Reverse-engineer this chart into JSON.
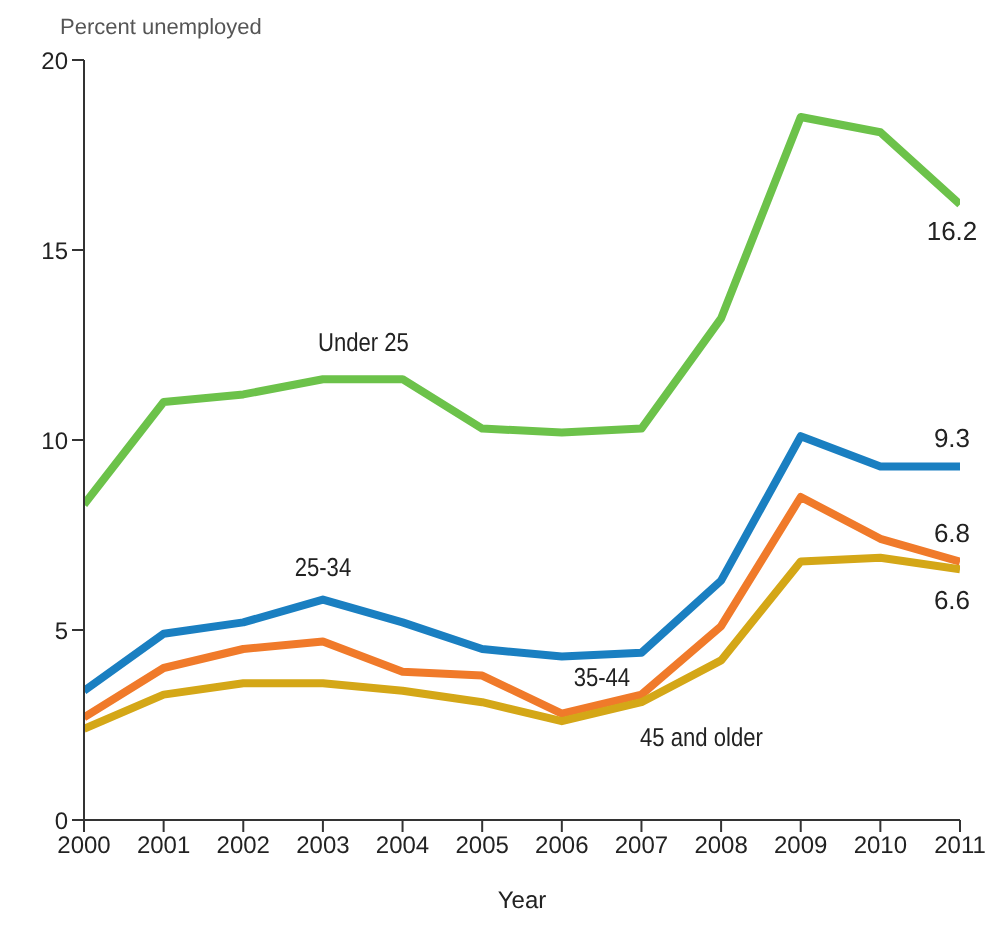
{
  "chart_data": {
    "type": "line",
    "ylabel": "Percent unemployed",
    "xlabel": "Year",
    "x": [
      2000,
      2001,
      2002,
      2003,
      2004,
      2005,
      2006,
      2007,
      2008,
      2009,
      2010,
      2011
    ],
    "xlim": [
      2000,
      2011
    ],
    "xticks": [
      2000,
      2001,
      2002,
      2003,
      2004,
      2005,
      2006,
      2007,
      2008,
      2009,
      2010,
      2011
    ],
    "ylim": [
      0,
      20
    ],
    "yticks": [
      0,
      5,
      10,
      15,
      20
    ],
    "grid": false,
    "legend": false,
    "marker": "none",
    "line_style": "solid",
    "series": [
      {
        "name": "Under 25",
        "color": "#6cc24a",
        "values": [
          8.3,
          11.0,
          11.2,
          11.6,
          11.6,
          10.3,
          10.2,
          10.3,
          13.2,
          18.5,
          18.1,
          16.2
        ],
        "value_labels": [
          null,
          null,
          null,
          null,
          null,
          null,
          null,
          null,
          null,
          null,
          null,
          "16.2"
        ]
      },
      {
        "name": "25-34",
        "color": "#1a7fc1",
        "values": [
          3.4,
          4.9,
          5.2,
          5.8,
          5.2,
          4.5,
          4.3,
          4.4,
          6.3,
          10.1,
          9.3,
          9.3
        ],
        "value_labels": [
          null,
          null,
          null,
          null,
          null,
          null,
          null,
          null,
          null,
          null,
          null,
          "9.3"
        ]
      },
      {
        "name": "35-44",
        "color": "#f07a2a",
        "values": [
          2.7,
          4.0,
          4.5,
          4.7,
          3.9,
          3.8,
          2.8,
          3.3,
          5.1,
          8.5,
          7.4,
          6.8
        ],
        "value_labels": [
          null,
          null,
          null,
          null,
          null,
          null,
          null,
          null,
          null,
          null,
          null,
          "6.8"
        ]
      },
      {
        "name": "45 and older",
        "color": "#d4a717",
        "values": [
          2.4,
          3.3,
          3.6,
          3.6,
          3.4,
          3.1,
          2.6,
          3.1,
          4.2,
          6.8,
          6.9,
          6.6
        ],
        "value_labels": [
          null,
          null,
          null,
          null,
          null,
          null,
          null,
          null,
          null,
          null,
          null,
          "6.6"
        ]
      }
    ]
  }
}
